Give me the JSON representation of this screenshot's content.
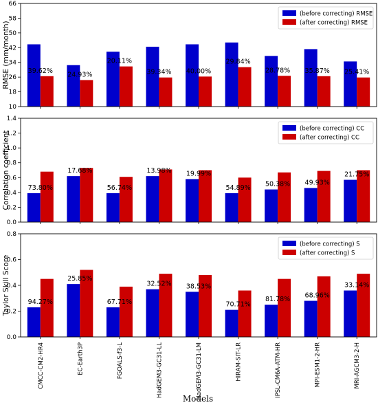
{
  "x_axis_label": "Models",
  "models": [
    "CMCC-CM2-HR4",
    "EC-Earth3P",
    "FGOALS-f3-L",
    "HadGEM3-GC31-LL",
    "HadGEM3-GC31-LM",
    "HIRAM-SIT-LR",
    "IPSL-CM6A-ATM-HR",
    "MPI-ESM1-2-HR",
    "MRI-AGCM3-2-H"
  ],
  "colors": {
    "before": "#0000cc",
    "after": "#cc0000"
  },
  "chart_data": [
    {
      "type": "bar",
      "ylabel": "RMSE (mm/month)",
      "ylim": [
        10,
        66
      ],
      "yticks": [
        "10",
        "18",
        "26",
        "34",
        "42",
        "50",
        "58",
        "66"
      ],
      "grid": false,
      "legend_position": "top-right",
      "series": [
        {
          "name": "(before correcting) RMSE",
          "values": [
            43.8,
            32.5,
            39.8,
            42.5,
            43.8,
            44.8,
            37.5,
            41.2,
            34.5
          ]
        },
        {
          "name": "(after correcting) RMSE",
          "values": [
            26.5,
            24.4,
            31.8,
            25.8,
            26.3,
            31.4,
            26.7,
            26.5,
            25.8
          ]
        }
      ],
      "annotations": [
        "39.62%",
        "24.93%",
        "20.11%",
        "39.34%",
        "40.00%",
        "29.84%",
        "28.78%",
        "35.87%",
        "25.41%"
      ]
    },
    {
      "type": "bar",
      "ylabel": "Correlation coefficient",
      "ylim": [
        0.0,
        1.4
      ],
      "yticks": [
        "0.0",
        "0.2",
        "0.4",
        "0.6",
        "0.8",
        "1.0",
        "1.2",
        "1.4"
      ],
      "grid": false,
      "legend_position": "top-right",
      "series": [
        {
          "name": "(before correcting) CC",
          "values": [
            0.39,
            0.62,
            0.39,
            0.62,
            0.58,
            0.39,
            0.44,
            0.46,
            0.57
          ]
        },
        {
          "name": "(after correcting) CC",
          "values": [
            0.68,
            0.73,
            0.61,
            0.71,
            0.7,
            0.6,
            0.67,
            0.69,
            0.7
          ]
        }
      ],
      "annotations": [
        "73.80%",
        "17.68%",
        "56.74%",
        "13.98%",
        "19.99%",
        "54.89%",
        "50.38%",
        "49.93%",
        "21.75%"
      ]
    },
    {
      "type": "bar",
      "ylabel": "Taylor Skill Score",
      "ylim": [
        0.0,
        0.8
      ],
      "yticks": [
        "0.0",
        "0.2",
        "0.4",
        "0.6",
        "0.8"
      ],
      "grid": false,
      "legend_position": "top-right",
      "series": [
        {
          "name": "(before correcting) S",
          "values": [
            0.23,
            0.41,
            0.23,
            0.37,
            0.35,
            0.21,
            0.25,
            0.28,
            0.36
          ]
        },
        {
          "name": "(after correcting) S",
          "values": [
            0.45,
            0.52,
            0.39,
            0.49,
            0.48,
            0.36,
            0.45,
            0.47,
            0.49
          ]
        }
      ],
      "annotations": [
        "94.27%",
        "25.85%",
        "67.71%",
        "32.52%",
        "38.53%",
        "70.71%",
        "81.78%",
        "68.96%",
        "33.14%"
      ]
    }
  ]
}
